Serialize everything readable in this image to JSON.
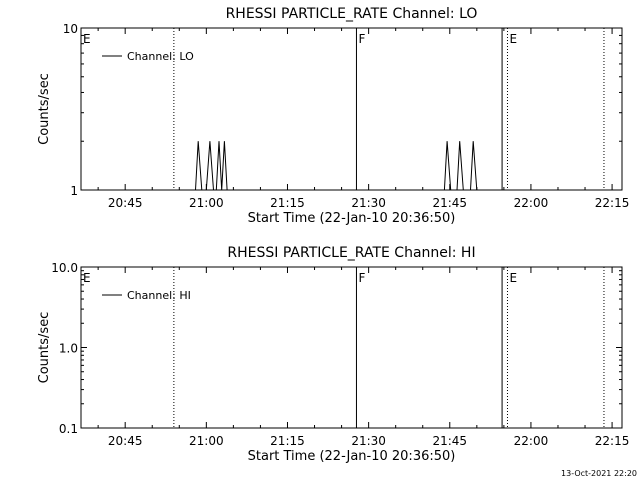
{
  "chart_data": [
    {
      "type": "line",
      "title": "RHESSI PARTICLE_RATE Channel: LO",
      "xlabel": "Start Time (22-Jan-10 20:36:50)",
      "ylabel": "Counts/sec",
      "yscale": "log",
      "ylim": [
        1,
        10
      ],
      "y_ticks": [
        "1",
        "10"
      ],
      "xlim": [
        "20:36:50",
        "22:16:50"
      ],
      "x_ticks": [
        "20:45",
        "21:00",
        "21:15",
        "21:30",
        "21:45",
        "22:00",
        "22:15"
      ],
      "legend": {
        "label": "Channel: LO",
        "position": "top-left"
      },
      "grid": false,
      "markers": [
        {
          "time": "20:36:50",
          "label": "E",
          "style": "none"
        },
        {
          "time": "20:54:00",
          "label": "",
          "style": "dotted"
        },
        {
          "time": "21:27:45",
          "label": "F",
          "style": "solid"
        },
        {
          "time": "21:54:40",
          "label": "",
          "style": "solid"
        },
        {
          "time": "21:55:40",
          "label": "E",
          "style": "dotted"
        },
        {
          "time": "22:13:30",
          "label": "",
          "style": "dotted"
        }
      ],
      "series": [
        {
          "name": "Channel: LO",
          "points": [
            [
              "20:58:00",
              1
            ],
            [
              "20:58:30",
              2
            ],
            [
              "20:59:10",
              1
            ],
            [
              "21:00:00",
              1
            ],
            [
              "21:00:40",
              2
            ],
            [
              "21:01:20",
              1
            ],
            [
              "21:01:50",
              1
            ],
            [
              "21:02:20",
              2
            ],
            [
              "21:02:50",
              1
            ],
            [
              "21:03:20",
              2
            ],
            [
              "21:03:50",
              1
            ],
            [
              "21:44:00",
              1
            ],
            [
              "21:44:30",
              2
            ],
            [
              "21:45:10",
              1
            ],
            [
              "21:46:20",
              1
            ],
            [
              "21:46:50",
              2
            ],
            [
              "21:47:30",
              1
            ],
            [
              "21:48:50",
              1
            ],
            [
              "21:49:20",
              2
            ],
            [
              "21:50:00",
              1
            ]
          ]
        }
      ]
    },
    {
      "type": "line",
      "title": "RHESSI PARTICLE_RATE Channel: HI",
      "xlabel": "Start Time (22-Jan-10 20:36:50)",
      "ylabel": "Counts/sec",
      "yscale": "log",
      "ylim": [
        0.1,
        10
      ],
      "y_ticks": [
        "0.1",
        "1.0",
        "10.0"
      ],
      "xlim": [
        "20:36:50",
        "22:16:50"
      ],
      "x_ticks": [
        "20:45",
        "21:00",
        "21:15",
        "21:30",
        "21:45",
        "22:00",
        "22:15"
      ],
      "legend": {
        "label": "Channel: HI",
        "position": "top-left"
      },
      "grid": false,
      "markers": [
        {
          "time": "20:36:50",
          "label": "E",
          "style": "none"
        },
        {
          "time": "20:54:00",
          "label": "",
          "style": "dotted"
        },
        {
          "time": "21:27:45",
          "label": "F",
          "style": "solid"
        },
        {
          "time": "21:54:40",
          "label": "",
          "style": "solid"
        },
        {
          "time": "21:55:40",
          "label": "E",
          "style": "dotted"
        },
        {
          "time": "22:13:30",
          "label": "",
          "style": "dotted"
        }
      ],
      "series": [
        {
          "name": "Channel: HI",
          "points": []
        }
      ]
    }
  ],
  "footer": {
    "timestamp": "13-Oct-2021 22:20"
  }
}
